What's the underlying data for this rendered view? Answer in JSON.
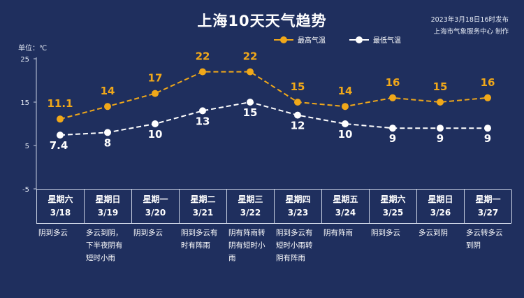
{
  "header": {
    "title": "上海10天天气趋势",
    "publish_time": "2023年3月18日16时发布",
    "publisher": "上海市气象服务中心 制作",
    "unit": "单位：℃"
  },
  "colors": {
    "high": "#f0a81a",
    "low": "#ffffff",
    "background": "#1f2f5e"
  },
  "days": [
    {
      "weekday": "星期六",
      "date": "3/18",
      "condition": "阴到多云"
    },
    {
      "weekday": "星期日",
      "date": "3/19",
      "condition": "多云到阴，下半夜阴有短时小雨"
    },
    {
      "weekday": "星期一",
      "date": "3/20",
      "condition": "阴到多云"
    },
    {
      "weekday": "星期二",
      "date": "3/21",
      "condition": "阴到多云有时有阵雨"
    },
    {
      "weekday": "星期三",
      "date": "3/22",
      "condition": "阴有阵雨转阴有短时小雨"
    },
    {
      "weekday": "星期四",
      "date": "3/23",
      "condition": "阴到多云有短时小雨转阴有阵雨"
    },
    {
      "weekday": "星期五",
      "date": "3/24",
      "condition": "阴有阵雨"
    },
    {
      "weekday": "星期六",
      "date": "3/25",
      "condition": "阴到多云"
    },
    {
      "weekday": "星期日",
      "date": "3/26",
      "condition": "多云到阴"
    },
    {
      "weekday": "星期一",
      "date": "3/27",
      "condition": "多云转多云到阴"
    }
  ],
  "chart_data": {
    "type": "line",
    "categories": [
      "3/18",
      "3/19",
      "3/20",
      "3/21",
      "3/22",
      "3/23",
      "3/24",
      "3/25",
      "3/26",
      "3/27"
    ],
    "series": [
      {
        "name": "最高气温",
        "values": [
          11.1,
          14,
          17,
          22,
          22,
          15,
          14,
          16,
          15,
          16
        ],
        "labels": [
          "11.1",
          "14",
          "17",
          "22",
          "22",
          "15",
          "14",
          "16",
          "15",
          "16"
        ]
      },
      {
        "name": "最低气温",
        "values": [
          7.4,
          8,
          10,
          13,
          15,
          12,
          10,
          9,
          9,
          9
        ],
        "labels": [
          "7.4",
          "8",
          "10",
          "13",
          "15",
          "12",
          "10",
          "9",
          "9",
          "9"
        ]
      }
    ],
    "y_ticks": [
      "25",
      "15",
      "5",
      "-5"
    ],
    "ylim": [
      -5,
      25
    ],
    "legend": "top-center"
  }
}
